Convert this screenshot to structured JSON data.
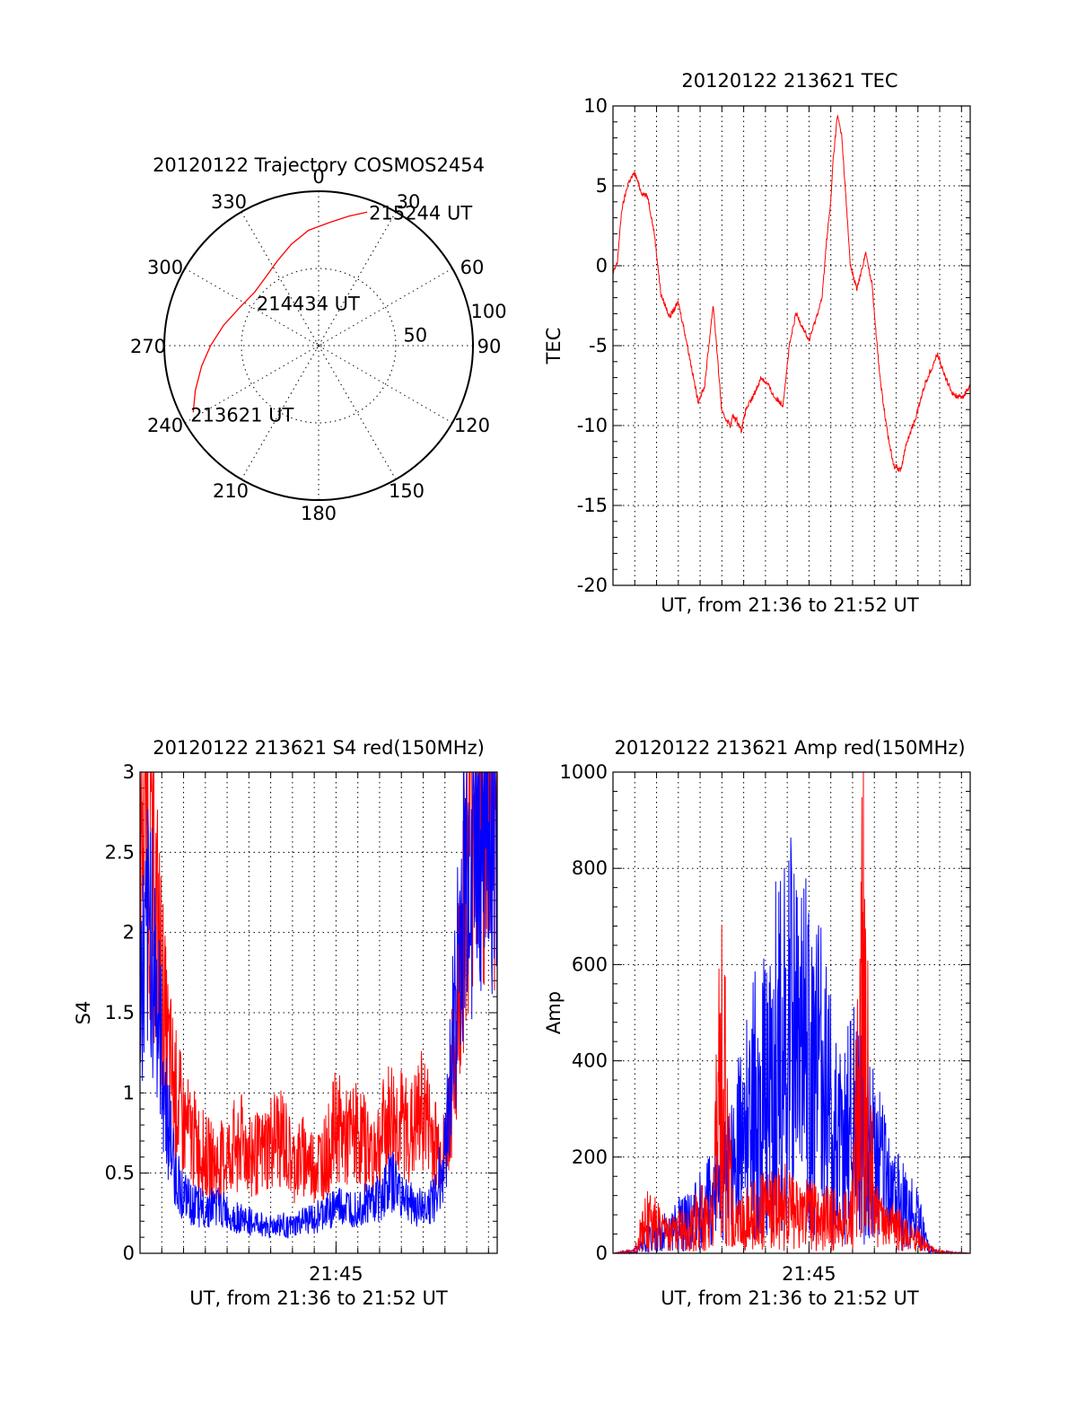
{
  "chart_data": [
    {
      "id": "trajectory",
      "type": "polar",
      "title": "20120122 Trajectory COSMOS2454",
      "angle_labels": [
        "0",
        "30",
        "60",
        "90",
        "120",
        "150",
        "180",
        "210",
        "240",
        "270",
        "300",
        "330"
      ],
      "radial_labels": [
        {
          "text": "50",
          "value": 50
        },
        {
          "text": "100",
          "value": 100
        }
      ],
      "r_max": 100,
      "series": [
        {
          "color": "#ff0000",
          "points": [
            [
              242,
              92
            ],
            [
              250,
              85
            ],
            [
              260,
              77
            ],
            [
              270,
              70
            ],
            [
              282,
              63
            ],
            [
              295,
              57
            ],
            [
              310,
              54
            ],
            [
              322,
              56
            ],
            [
              334,
              61
            ],
            [
              345,
              68
            ],
            [
              355,
              75
            ],
            [
              5,
              80
            ],
            [
              13,
              86
            ],
            [
              20,
              92
            ]
          ]
        }
      ],
      "annotations": [
        {
          "text": "213621 UT",
          "az": 242,
          "r": 92
        },
        {
          "text": "214434 UT",
          "az": 310,
          "r": 54
        },
        {
          "text": "215244 UT",
          "az": 20,
          "r": 92
        }
      ]
    },
    {
      "id": "tec",
      "type": "line",
      "title": "20120122 213621 TEC",
      "xlabel": "UT, from 21:36 to 21:52 UT",
      "ylabel": "TEC",
      "xlim": [
        0,
        16.4
      ],
      "ylim": [
        -20,
        10
      ],
      "yticks": [
        -20,
        -15,
        -10,
        -5,
        0,
        5,
        10
      ],
      "grid": true,
      "series": [
        {
          "color": "#ff0000",
          "x": [
            0,
            0.2,
            0.4,
            0.7,
            1.0,
            1.3,
            1.6,
            1.9,
            2.2,
            2.6,
            3.0,
            3.3,
            3.6,
            3.9,
            4.2,
            4.6,
            5.0,
            5.3,
            5.4,
            5.5,
            5.7,
            5.9,
            6.1,
            6.4,
            6.8,
            7.1,
            7.4,
            7.8,
            8.1,
            8.4,
            8.7,
            9.0,
            9.3,
            9.6,
            9.8,
            10.0,
            10.1,
            10.3,
            10.5,
            10.7,
            10.9,
            11.2,
            11.6,
            11.9,
            12.1,
            12.3,
            12.6,
            12.9,
            13.2,
            13.5,
            13.9,
            14.3,
            14.6,
            14.9,
            15.2,
            15.6,
            16.0,
            16.4
          ],
          "y": [
            -0.5,
            0.2,
            3.5,
            5.2,
            5.8,
            4.6,
            4.3,
            2.0,
            -1.8,
            -3.2,
            -2.3,
            -4.2,
            -6.3,
            -8.5,
            -7.6,
            -2.4,
            -9.2,
            -9.8,
            -10.0,
            -9.4,
            -9.7,
            -10.3,
            -9.0,
            -8.3,
            -7.0,
            -7.4,
            -8.2,
            -8.7,
            -5.0,
            -3.0,
            -3.8,
            -4.7,
            -3.4,
            -2.0,
            1.5,
            4.0,
            6.5,
            9.4,
            8.2,
            4.1,
            0.0,
            -1.5,
            0.8,
            -1.2,
            -4.6,
            -7.5,
            -10.5,
            -12.5,
            -12.8,
            -11.0,
            -9.5,
            -7.5,
            -6.5,
            -5.5,
            -6.8,
            -8.0,
            -8.3,
            -7.5
          ]
        }
      ]
    },
    {
      "id": "s4",
      "type": "line",
      "title": "20120122 213621 S4 red(150MHz)",
      "xlabel": "UT, from 21:36 to 21:52 UT",
      "ylabel": "S4",
      "xticklabels": [
        {
          "text": "21:45",
          "value": 9.0
        }
      ],
      "xlim": [
        0,
        16.4
      ],
      "ylim": [
        0,
        3
      ],
      "yticks": [
        0,
        0.5,
        1,
        1.5,
        2,
        2.5,
        3
      ],
      "grid": true,
      "series": [
        {
          "color": "#ff0000",
          "x": [
            0.2,
            0.5,
            0.8,
            1.2,
            1.6,
            2.0,
            2.5,
            3.0,
            3.5,
            4.0,
            4.5,
            5.0,
            5.5,
            6.0,
            6.5,
            7.0,
            7.5,
            8.0,
            8.5,
            9.0,
            9.5,
            10.0,
            10.5,
            11.0,
            11.5,
            12.0,
            12.5,
            13.0,
            13.5,
            14.0,
            14.5,
            15.0,
            15.5,
            16.0
          ],
          "y": [
            2.9,
            2.5,
            2.0,
            1.3,
            1.0,
            0.8,
            0.7,
            0.6,
            0.55,
            0.6,
            0.7,
            0.65,
            0.6,
            0.7,
            0.75,
            0.55,
            0.6,
            0.55,
            0.6,
            0.8,
            0.7,
            0.75,
            0.65,
            0.7,
            0.85,
            0.8,
            0.75,
            0.9,
            0.7,
            0.6,
            1.3,
            2.6,
            2.9,
            2.8
          ]
        },
        {
          "color": "#0000ff",
          "x": [
            0.2,
            0.5,
            0.8,
            1.2,
            1.6,
            2.0,
            2.5,
            3.0,
            3.5,
            4.0,
            4.5,
            5.0,
            5.5,
            6.0,
            6.5,
            7.0,
            7.5,
            8.0,
            8.5,
            9.0,
            9.5,
            10.0,
            10.5,
            11.0,
            11.5,
            12.0,
            12.5,
            13.0,
            13.5,
            14.0,
            14.5,
            15.0,
            15.5,
            16.0
          ],
          "y": [
            1.7,
            2.1,
            1.5,
            0.9,
            0.5,
            0.35,
            0.3,
            0.28,
            0.3,
            0.25,
            0.22,
            0.2,
            0.18,
            0.17,
            0.18,
            0.16,
            0.2,
            0.22,
            0.25,
            0.3,
            0.28,
            0.3,
            0.32,
            0.35,
            0.45,
            0.38,
            0.3,
            0.28,
            0.35,
            0.6,
            1.6,
            2.4,
            2.8,
            2.9
          ]
        }
      ]
    },
    {
      "id": "amp",
      "type": "line",
      "title": "20120122 213621 Amp red(150MHz)",
      "xlabel": "UT, from 21:36 to 21:52 UT",
      "ylabel": "Amp",
      "xticklabels": [
        {
          "text": "21:45",
          "value": 9.0
        }
      ],
      "xlim": [
        0,
        16.4
      ],
      "ylim": [
        0,
        1000
      ],
      "yticks": [
        0,
        200,
        400,
        600,
        800,
        1000
      ],
      "grid": true,
      "series": [
        {
          "color": "#0000ff",
          "x": [
            0,
            1.0,
            1.5,
            2.0,
            2.5,
            3.0,
            3.5,
            4.0,
            4.5,
            5.0,
            5.5,
            6.0,
            6.5,
            7.0,
            7.5,
            8.0,
            8.5,
            9.0,
            9.5,
            10.0,
            10.5,
            11.0,
            11.5,
            12.0,
            12.5,
            13.0,
            13.5,
            14.0,
            14.5,
            15.0,
            16.4
          ],
          "y": [
            0,
            5,
            30,
            40,
            45,
            60,
            70,
            90,
            110,
            140,
            190,
            230,
            300,
            340,
            400,
            480,
            380,
            420,
            360,
            280,
            220,
            330,
            240,
            200,
            150,
            110,
            90,
            70,
            10,
            3,
            0
          ]
        },
        {
          "color": "#ff0000",
          "x": [
            0,
            1.0,
            1.5,
            2.0,
            2.5,
            3.0,
            3.5,
            4.0,
            4.5,
            5.0,
            5.5,
            6.0,
            6.5,
            7.0,
            7.5,
            8.0,
            8.5,
            9.0,
            9.5,
            10.0,
            10.5,
            11.0,
            11.5,
            12.0,
            12.5,
            13.0,
            13.5,
            14.0,
            14.5,
            15.0,
            16.4
          ],
          "y": [
            0,
            5,
            70,
            60,
            40,
            50,
            45,
            80,
            60,
            410,
            60,
            70,
            80,
            90,
            90,
            100,
            80,
            90,
            70,
            80,
            60,
            80,
            590,
            80,
            50,
            60,
            40,
            30,
            10,
            3,
            0
          ]
        }
      ]
    }
  ]
}
